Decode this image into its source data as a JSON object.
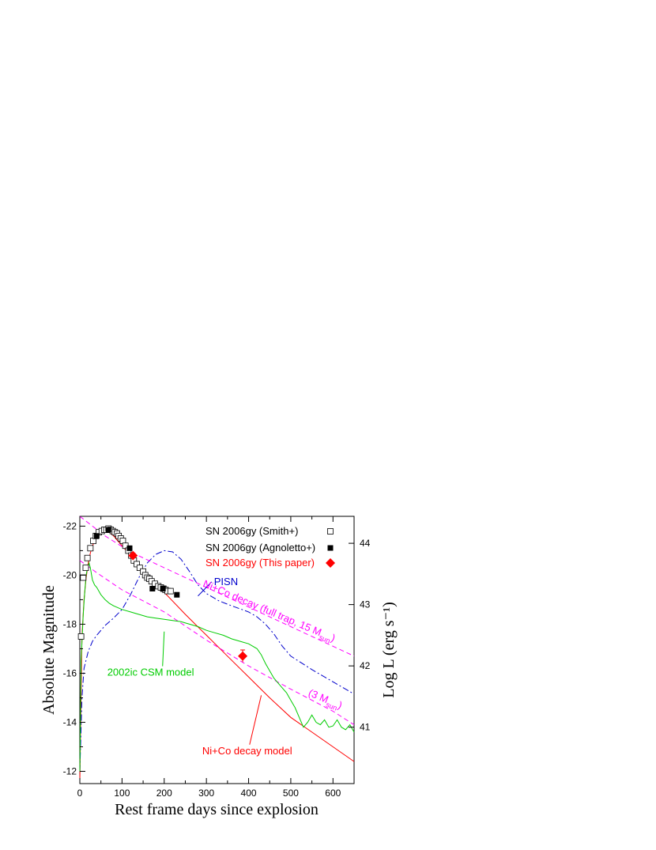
{
  "chart_data": {
    "type": "scatter",
    "xlabel": "Rest frame days since explosion",
    "ylabel": "Absolute Magnitude",
    "y2label": "Log L (erg s⁻¹)",
    "xlim": [
      0,
      650
    ],
    "ylim": [
      -11.5,
      -22.4
    ],
    "xticks": [
      0,
      100,
      200,
      300,
      400,
      500,
      600
    ],
    "yticks": [
      -22,
      -20,
      -18,
      -16,
      -14,
      -12
    ],
    "y2ticks": [
      41,
      42,
      43,
      44
    ],
    "y2_mag_at": {
      "41": -13.8,
      "42": -16.3,
      "43": -18.8,
      "44": -21.3
    },
    "legend_position": "top-right",
    "legend": [
      {
        "label": "SN 2006gy (Smith+)",
        "color": "#000000",
        "marker": "open-square"
      },
      {
        "label": "SN 2006gy (Agnoletto+)",
        "color": "#000000",
        "marker": "filled-square"
      },
      {
        "label": "SN 2006gy (This paper)",
        "color": "#ff0000",
        "marker": "diamond"
      }
    ],
    "annotations": [
      {
        "id": "pisn",
        "text": "PISN",
        "color": "#0000cc",
        "x": 318,
        "y": -19.6,
        "arrow_to": [
          280,
          -19.15
        ]
      },
      {
        "id": "full",
        "text": "Ni+Co decay (full trap, 15 M",
        "sub": "sun",
        "tail": ")",
        "color": "#ff00ff",
        "x": 290,
        "y": -19.55,
        "rotate": 23
      },
      {
        "id": "three",
        "text": "(3 M",
        "sub": "sun",
        "tail": ")",
        "color": "#ff00ff",
        "x": 540,
        "y": -15.1,
        "rotate": 23
      },
      {
        "id": "csm",
        "text": "2002ic CSM model",
        "color": "#00cc00",
        "x": 65,
        "y": -15.9,
        "arrow_to": [
          200,
          -17.7
        ]
      },
      {
        "id": "nico",
        "text": "Ni+Co decay model",
        "color": "#ff0000",
        "x": 290,
        "y": -12.7,
        "arrow_to": [
          430,
          -15.1
        ]
      }
    ],
    "series": [
      {
        "name": "SN 2006gy (Smith+)",
        "type": "scatter",
        "marker": "open-square",
        "color": "#000000",
        "x": [
          3,
          8,
          14,
          18,
          25,
          32,
          38,
          45,
          52,
          58,
          63,
          68,
          73,
          78,
          83,
          88,
          92,
          97,
          102,
          108,
          115,
          122,
          128,
          135,
          142,
          150,
          155,
          160,
          165,
          170,
          178,
          186,
          192,
          198,
          203,
          208,
          215
        ],
        "y": [
          -17.5,
          -19.9,
          -20.3,
          -20.7,
          -21.1,
          -21.4,
          -21.6,
          -21.75,
          -21.8,
          -21.85,
          -21.85,
          -21.9,
          -21.85,
          -21.8,
          -21.75,
          -21.7,
          -21.6,
          -21.5,
          -21.4,
          -21.2,
          -21.0,
          -20.8,
          -20.6,
          -20.45,
          -20.3,
          -20.15,
          -20.0,
          -19.9,
          -19.85,
          -19.75,
          -19.65,
          -19.55,
          -19.5,
          -19.45,
          -19.4,
          -19.35,
          -19.35
        ]
      },
      {
        "name": "SN 2006gy (Agnoletto+)",
        "type": "scatter",
        "marker": "filled-square",
        "color": "#000000",
        "x": [
          40,
          68,
          118,
          172,
          197,
          230
        ],
        "y": [
          -21.6,
          -21.85,
          -21.1,
          -19.45,
          -19.45,
          -19.2
        ]
      },
      {
        "name": "SN 2006gy (This paper)",
        "type": "scatter",
        "marker": "diamond",
        "color": "#ff0000",
        "x": [
          126,
          386
        ],
        "y": [
          -20.8,
          -16.7
        ],
        "yerr": [
          0.1,
          0.25
        ]
      },
      {
        "name": "Ni+Co decay model",
        "type": "line",
        "color": "#ff0000",
        "dash": "",
        "x": [
          0,
          5,
          10,
          15,
          20,
          25,
          30,
          40,
          50,
          60,
          70,
          80,
          90,
          100,
          110,
          120,
          140,
          160,
          180,
          200,
          250,
          300,
          350,
          400,
          450,
          500,
          550,
          600,
          650
        ],
        "y": [
          -11.6,
          -17.5,
          -19.0,
          -19.9,
          -20.5,
          -20.9,
          -21.2,
          -21.55,
          -21.75,
          -21.8,
          -21.75,
          -21.6,
          -21.4,
          -21.2,
          -21.0,
          -20.8,
          -20.4,
          -20.0,
          -19.6,
          -19.3,
          -18.4,
          -17.55,
          -16.7,
          -15.85,
          -15.0,
          -14.2,
          -13.6,
          -13.0,
          -12.4
        ]
      },
      {
        "name": "PISN",
        "type": "line",
        "color": "#0000cc",
        "dash": "8,3,2,3",
        "x": [
          0,
          5,
          10,
          20,
          30,
          40,
          60,
          80,
          100,
          120,
          140,
          160,
          180,
          200,
          220,
          240,
          260,
          280,
          300,
          330,
          360,
          400,
          420,
          440,
          460,
          480,
          500,
          550,
          600,
          650
        ],
        "y": [
          -12.0,
          -15.0,
          -16.2,
          -16.9,
          -17.3,
          -17.55,
          -17.95,
          -18.25,
          -18.6,
          -19.2,
          -19.9,
          -20.5,
          -20.85,
          -21.0,
          -20.95,
          -20.65,
          -20.15,
          -19.6,
          -19.25,
          -18.95,
          -18.75,
          -18.5,
          -18.3,
          -18.0,
          -17.6,
          -17.1,
          -16.7,
          -16.15,
          -15.65,
          -15.15
        ]
      },
      {
        "name": "Ni+Co decay (full trap, 15 Msun)",
        "type": "line",
        "color": "#ff00ff",
        "dash": "6,4",
        "x": [
          0,
          60,
          120,
          200,
          300,
          400,
          500,
          600,
          650
        ],
        "y": [
          -22.4,
          -21.6,
          -20.95,
          -20.3,
          -19.5,
          -18.7,
          -17.9,
          -17.1,
          -16.7
        ]
      },
      {
        "name": "Ni+Co decay (3 Msun)",
        "type": "line",
        "color": "#ff00ff",
        "dash": "6,4",
        "x": [
          0,
          40,
          100,
          200,
          300,
          400,
          500,
          600,
          650
        ],
        "y": [
          -20.6,
          -20.1,
          -19.4,
          -18.5,
          -17.35,
          -16.3,
          -15.35,
          -14.45,
          -13.9
        ]
      },
      {
        "name": "2002ic CSM model",
        "type": "line",
        "color": "#00cc00",
        "dash": "",
        "x": [
          0,
          3,
          8,
          12,
          15,
          18,
          20,
          22,
          25,
          28,
          30,
          35,
          40,
          50,
          60,
          70,
          80,
          100,
          120,
          140,
          160,
          180,
          200,
          220,
          240,
          260,
          280,
          300,
          320,
          340,
          360,
          380,
          400,
          420,
          430,
          440,
          450,
          460,
          470,
          480,
          490,
          500,
          510,
          520,
          530,
          540,
          550,
          560,
          570,
          580,
          590,
          600,
          610,
          620,
          630,
          640,
          650
        ],
        "y": [
          -12.0,
          -16.5,
          -18.4,
          -19.4,
          -20.0,
          -20.3,
          -20.4,
          -20.5,
          -20.3,
          -20.0,
          -19.8,
          -19.6,
          -19.5,
          -19.2,
          -19.0,
          -18.85,
          -18.75,
          -18.6,
          -18.5,
          -18.4,
          -18.3,
          -18.25,
          -18.2,
          -18.15,
          -18.1,
          -18.0,
          -17.9,
          -17.75,
          -17.65,
          -17.55,
          -17.4,
          -17.3,
          -17.2,
          -17.0,
          -16.75,
          -16.4,
          -16.1,
          -15.8,
          -15.6,
          -15.4,
          -15.2,
          -14.9,
          -14.6,
          -14.2,
          -13.8,
          -14.0,
          -14.3,
          -14.0,
          -13.9,
          -14.1,
          -13.8,
          -13.85,
          -14.1,
          -13.8,
          -13.7,
          -13.9,
          -13.6
        ]
      }
    ]
  }
}
